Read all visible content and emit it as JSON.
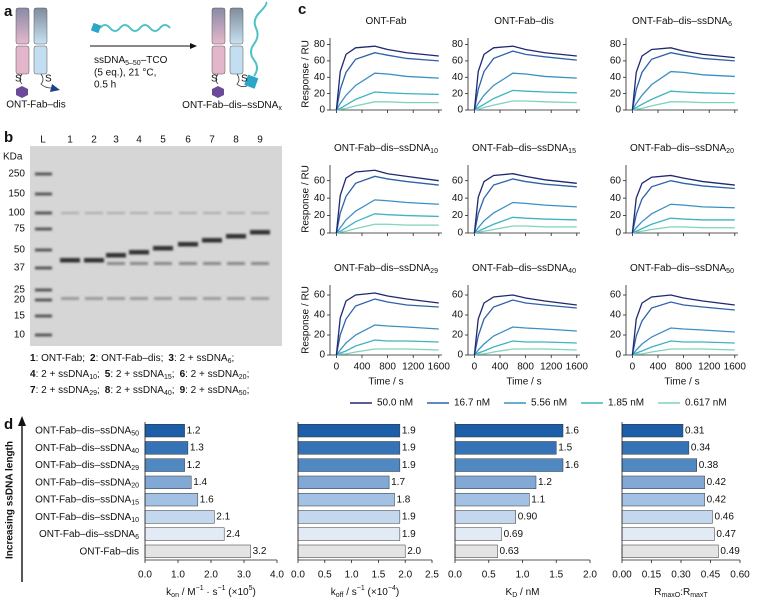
{
  "panel_labels": [
    "a",
    "b",
    "c",
    "d"
  ],
  "scheme": {
    "start": "ONT-Fab–dis",
    "product": {
      "text": "ONT-Fab–dis–ssDNA",
      "sub": "x"
    },
    "reagent": {
      "text": "ssDNA",
      "sub": "5–50",
      "after": "–TCO"
    },
    "conditions": [
      "(5 eq.), 21 °C,",
      "0.5 h"
    ],
    "sulfur": "S"
  },
  "gel": {
    "lanes": [
      "L",
      "1",
      "2",
      "3",
      "4",
      "5",
      "6",
      "7",
      "8",
      "9"
    ],
    "unit": "KDa",
    "markers": [
      "250",
      "150",
      "100",
      "75",
      "50",
      "37",
      "25",
      "20",
      "15",
      "10"
    ],
    "legend": [
      [
        {
          "key": "1",
          "text": ": ONT-Fab;"
        },
        {
          "key": "2",
          "text": ": ONT-Fab–dis;"
        },
        {
          "key": "3",
          "text": ": 2 + ssDNA",
          "sub": "6",
          "end": ";"
        }
      ],
      [
        {
          "key": "4",
          "text": ": 2 + ssDNA",
          "sub": "10",
          "end": ";"
        },
        {
          "key": "5",
          "text": ": 2 + ssDNA",
          "sub": "15",
          "end": ";"
        },
        {
          "key": "6",
          "text": ": 2 + ssDNA",
          "sub": "20",
          "end": ";"
        }
      ],
      [
        {
          "key": "7",
          "text": ": 2 + ssDNA",
          "sub": "29",
          "end": ";"
        },
        {
          "key": "8",
          "text": ": 2 + ssDNA",
          "sub": "40",
          "end": ";"
        },
        {
          "key": "9",
          "text": ": 2 + ssDNA",
          "sub": "50",
          "end": ";"
        }
      ]
    ]
  },
  "spr": {
    "x": [
      0,
      60,
      150,
      300,
      600,
      800,
      1100,
      1600
    ],
    "xlim": [
      -100,
      1650
    ],
    "xticks": [
      0,
      400,
      800,
      1200,
      1600
    ],
    "xlabel": "Time / s",
    "ylabel": "Response / RU",
    "legend": [
      {
        "name": "50.0 nM",
        "color": "#1f2870"
      },
      {
        "name": "16.7 nM",
        "color": "#2e62a8"
      },
      {
        "name": "5.56 nM",
        "color": "#3b8fc4"
      },
      {
        "name": "1.85 nM",
        "color": "#3fb3c2"
      },
      {
        "name": "0.617 nM",
        "color": "#7fd3bf"
      }
    ]
  },
  "chart_data": [
    {
      "type": "line",
      "title": {
        "text": "ONT-Fab"
      },
      "ylim": [
        0,
        88
      ],
      "yticks": [
        0,
        20,
        40,
        60,
        80
      ],
      "series": [
        {
          "values": [
            0,
            47,
            68,
            76,
            78,
            74,
            70,
            66
          ]
        },
        {
          "values": [
            0,
            25,
            46,
            62,
            70,
            67,
            63,
            60
          ]
        },
        {
          "values": [
            0,
            8,
            18,
            30,
            45,
            44,
            41,
            39
          ]
        },
        {
          "values": [
            0,
            2,
            6,
            13,
            22,
            21,
            20,
            19
          ]
        },
        {
          "values": [
            0,
            1,
            2,
            5,
            10,
            10,
            9,
            9
          ]
        }
      ]
    },
    {
      "type": "line",
      "title": {
        "text": "ONT-Fab–dis"
      },
      "ylim": [
        0,
        88
      ],
      "yticks": [
        0,
        20,
        40,
        60,
        80
      ],
      "series": [
        {
          "values": [
            0,
            47,
            68,
            76,
            78,
            74,
            70,
            66
          ]
        },
        {
          "values": [
            0,
            25,
            47,
            63,
            72,
            68,
            65,
            61
          ]
        },
        {
          "values": [
            0,
            8,
            18,
            30,
            45,
            44,
            41,
            39
          ]
        },
        {
          "values": [
            0,
            3,
            7,
            14,
            24,
            23,
            22,
            21
          ]
        },
        {
          "values": [
            0,
            1,
            3,
            6,
            11,
            11,
            10,
            9
          ]
        }
      ]
    },
    {
      "type": "line",
      "title": {
        "text": "ONT-Fab–dis–ssDNA",
        "sub": "6"
      },
      "ylim": [
        0,
        88
      ],
      "yticks": [
        0,
        20,
        40,
        60,
        80
      ],
      "series": [
        {
          "values": [
            0,
            46,
            66,
            74,
            76,
            72,
            68,
            64
          ]
        },
        {
          "values": [
            0,
            25,
            46,
            62,
            70,
            67,
            63,
            60
          ]
        },
        {
          "values": [
            0,
            8,
            18,
            31,
            47,
            46,
            43,
            41
          ]
        },
        {
          "values": [
            0,
            3,
            7,
            13,
            23,
            22,
            21,
            20
          ]
        },
        {
          "values": [
            0,
            1,
            2,
            5,
            10,
            10,
            9,
            9
          ]
        }
      ]
    },
    {
      "type": "line",
      "title": {
        "text": "ONT-Fab–dis–ssDNA",
        "sub": "10"
      },
      "ylim": [
        0,
        78
      ],
      "yticks": [
        0,
        20,
        40,
        60
      ],
      "series": [
        {
          "values": [
            0,
            43,
            63,
            70,
            72,
            68,
            65,
            60
          ]
        },
        {
          "values": [
            0,
            23,
            42,
            57,
            65,
            62,
            59,
            55
          ]
        },
        {
          "values": [
            0,
            6,
            15,
            25,
            38,
            37,
            35,
            33
          ]
        },
        {
          "values": [
            0,
            2,
            6,
            13,
            22,
            21,
            20,
            19
          ]
        },
        {
          "values": [
            0,
            1,
            2,
            5,
            10,
            10,
            9,
            9
          ]
        }
      ]
    },
    {
      "type": "line",
      "title": {
        "text": "ONT-Fab–dis–ssDNA",
        "sub": "15"
      },
      "ylim": [
        0,
        78
      ],
      "yticks": [
        0,
        20,
        40,
        60
      ],
      "series": [
        {
          "values": [
            0,
            41,
            59,
            66,
            68,
            65,
            61,
            57
          ]
        },
        {
          "values": [
            0,
            22,
            40,
            55,
            62,
            59,
            56,
            53
          ]
        },
        {
          "values": [
            0,
            6,
            14,
            23,
            35,
            34,
            32,
            30
          ]
        },
        {
          "values": [
            0,
            2,
            5,
            10,
            18,
            17,
            16,
            15
          ]
        },
        {
          "values": [
            0,
            1,
            2,
            4,
            8,
            8,
            7,
            7
          ]
        }
      ]
    },
    {
      "type": "line",
      "title": {
        "text": "ONT-Fab–dis–ssDNA",
        "sub": "20"
      },
      "ylim": [
        0,
        78
      ],
      "yticks": [
        0,
        20,
        40,
        60
      ],
      "series": [
        {
          "values": [
            0,
            40,
            57,
            64,
            66,
            63,
            59,
            55
          ]
        },
        {
          "values": [
            0,
            21,
            39,
            53,
            60,
            57,
            54,
            51
          ]
        },
        {
          "values": [
            0,
            6,
            13,
            22,
            33,
            32,
            30,
            29
          ]
        },
        {
          "values": [
            0,
            2,
            5,
            10,
            17,
            16,
            15,
            15
          ]
        },
        {
          "values": [
            0,
            1,
            2,
            4,
            7,
            7,
            6,
            6
          ]
        }
      ]
    },
    {
      "type": "line",
      "title": {
        "text": "ONT-Fab–dis–ssDNA",
        "sub": "29"
      },
      "ylim": [
        0,
        70
      ],
      "yticks": [
        0,
        20,
        40,
        60
      ],
      "series": [
        {
          "values": [
            0,
            37,
            54,
            60,
            62,
            59,
            56,
            52
          ]
        },
        {
          "values": [
            0,
            20,
            36,
            49,
            56,
            53,
            50,
            48
          ]
        },
        {
          "values": [
            0,
            5,
            12,
            20,
            30,
            29,
            28,
            26
          ]
        },
        {
          "values": [
            0,
            2,
            4,
            9,
            15,
            14,
            14,
            13
          ]
        },
        {
          "values": [
            0,
            1,
            1,
            3,
            6,
            6,
            6,
            5
          ]
        }
      ]
    },
    {
      "type": "line",
      "title": {
        "text": "ONT-Fab–dis–ssDNA",
        "sub": "40"
      },
      "ylim": [
        0,
        70
      ],
      "yticks": [
        0,
        20,
        40,
        60
      ],
      "series": [
        {
          "values": [
            0,
            36,
            52,
            58,
            60,
            57,
            54,
            50
          ]
        },
        {
          "values": [
            0,
            19,
            36,
            48,
            55,
            52,
            50,
            47
          ]
        },
        {
          "values": [
            0,
            5,
            11,
            19,
            28,
            27,
            26,
            24
          ]
        },
        {
          "values": [
            0,
            2,
            4,
            8,
            14,
            13,
            13,
            12
          ]
        },
        {
          "values": [
            0,
            1,
            1,
            3,
            6,
            6,
            6,
            5
          ]
        }
      ]
    },
    {
      "type": "line",
      "title": {
        "text": "ONT-Fab–dis–ssDNA",
        "sub": "50"
      },
      "ylim": [
        0,
        70
      ],
      "yticks": [
        0,
        20,
        40,
        60
      ],
      "series": [
        {
          "values": [
            0,
            36,
            52,
            58,
            60,
            57,
            54,
            50
          ]
        },
        {
          "values": [
            0,
            19,
            34,
            47,
            53,
            50,
            48,
            45
          ]
        },
        {
          "values": [
            0,
            5,
            11,
            18,
            27,
            26,
            25,
            23
          ]
        },
        {
          "values": [
            0,
            2,
            4,
            8,
            14,
            13,
            13,
            12
          ]
        },
        {
          "values": [
            0,
            1,
            1,
            3,
            6,
            6,
            6,
            5
          ]
        }
      ]
    },
    {
      "type": "bar",
      "orientation": "horizontal",
      "ylabel": "Increasing ssDNA length",
      "categories": [
        {
          "text": "ONT-Fab–dis–ssDNA",
          "sub": "50"
        },
        {
          "text": "ONT-Fab–dis–ssDNA",
          "sub": "40"
        },
        {
          "text": "ONT-Fab–dis–ssDNA",
          "sub": "29"
        },
        {
          "text": "ONT-Fab–dis–ssDNA",
          "sub": "20"
        },
        {
          "text": "ONT-Fab–dis–ssDNA",
          "sub": "15"
        },
        {
          "text": "ONT-Fab–dis–ssDNA",
          "sub": "10"
        },
        {
          "text": "ONT-Fab–dis–ssDNA",
          "sub": "6"
        },
        {
          "text": "ONT-Fab–dis"
        }
      ],
      "values": [
        1.2,
        1.3,
        1.2,
        1.4,
        1.6,
        2.1,
        2.4,
        3.2
      ],
      "colors": [
        "#1d5ea8",
        "#3573b6",
        "#5088c2",
        "#82a9d6",
        "#a3c1e2",
        "#c3d7ee",
        "#e1eaf5",
        "#e4e4e4"
      ],
      "xlim": [
        0,
        4
      ],
      "xticks": [
        {
          "value": 0,
          "label": "0.0"
        },
        {
          "value": 1,
          "label": "1.0"
        },
        {
          "value": 2,
          "label": "2.0"
        },
        {
          "value": 3,
          "label": "3.0"
        },
        {
          "value": 4,
          "label": "4.0"
        }
      ],
      "xlabel": [
        {
          "text": "k"
        },
        {
          "text": "on",
          "shift": "sub"
        },
        {
          "text": " / M"
        },
        {
          "text": "−1",
          "shift": "super"
        },
        {
          "text": " · s"
        },
        {
          "text": "−1",
          "shift": "super"
        },
        {
          "text": " (×10"
        },
        {
          "text": "5",
          "shift": "super"
        },
        {
          "text": ")"
        }
      ]
    },
    {
      "type": "bar",
      "orientation": "horizontal",
      "values": [
        1.9,
        1.9,
        1.9,
        1.7,
        1.8,
        1.9,
        1.9,
        2.0
      ],
      "value_labels": [
        "1.9",
        "1.9",
        "1.9",
        "1.7",
        "1.8",
        "1.9",
        "1.9",
        "2.0"
      ],
      "colors": [
        "#1d5ea8",
        "#3573b6",
        "#5088c2",
        "#82a9d6",
        "#a3c1e2",
        "#c3d7ee",
        "#e1eaf5",
        "#e4e4e4"
      ],
      "xlim": [
        0,
        2.5
      ],
      "xticks": [
        {
          "value": 0,
          "label": "0.0"
        },
        0.5,
        {
          "value": 1,
          "label": "1.0"
        },
        1.5,
        {
          "value": 2,
          "label": "2.0"
        },
        2.5
      ],
      "xlabel": [
        {
          "text": "k"
        },
        {
          "text": "off",
          "shift": "sub"
        },
        {
          "text": " / s"
        },
        {
          "text": "−1",
          "shift": "super"
        },
        {
          "text": " (×10"
        },
        {
          "text": "−4",
          "shift": "super"
        },
        {
          "text": ")"
        }
      ]
    },
    {
      "type": "bar",
      "orientation": "horizontal",
      "values": [
        1.6,
        1.5,
        1.6,
        1.2,
        1.1,
        0.9,
        0.69,
        0.63
      ],
      "value_labels": [
        "1.6",
        "1.5",
        "1.6",
        "1.2",
        "1.1",
        "0.90",
        "0.69",
        "0.63"
      ],
      "colors": [
        "#1d5ea8",
        "#3573b6",
        "#5088c2",
        "#82a9d6",
        "#a3c1e2",
        "#c3d7ee",
        "#e1eaf5",
        "#e4e4e4"
      ],
      "xlim": [
        0,
        2
      ],
      "xticks": [
        {
          "value": 0,
          "label": "0.0"
        },
        0.5,
        {
          "value": 1,
          "label": "1.0"
        },
        1.5,
        {
          "value": 2,
          "label": "2.0"
        }
      ],
      "xlabel": [
        {
          "text": "K"
        },
        {
          "text": "D",
          "shift": "sub"
        },
        {
          "text": " / nM"
        }
      ]
    },
    {
      "type": "bar",
      "orientation": "horizontal",
      "values": [
        0.31,
        0.34,
        0.38,
        0.42,
        0.42,
        0.46,
        0.47,
        0.49
      ],
      "colors": [
        "#1d5ea8",
        "#3573b6",
        "#5088c2",
        "#82a9d6",
        "#a3c1e2",
        "#c3d7ee",
        "#e1eaf5",
        "#e4e4e4"
      ],
      "xlim": [
        0,
        0.6
      ],
      "xticks": [
        {
          "value": 0,
          "label": "0.00"
        },
        0.15,
        {
          "value": 0.3,
          "label": "0.30"
        },
        0.45,
        {
          "value": 0.6,
          "label": "0.60"
        }
      ],
      "xlabel": [
        {
          "text": "R"
        },
        {
          "text": "maxO",
          "shift": "sub"
        },
        {
          "text": ":R"
        },
        {
          "text": "maxT",
          "shift": "sub"
        }
      ]
    }
  ]
}
